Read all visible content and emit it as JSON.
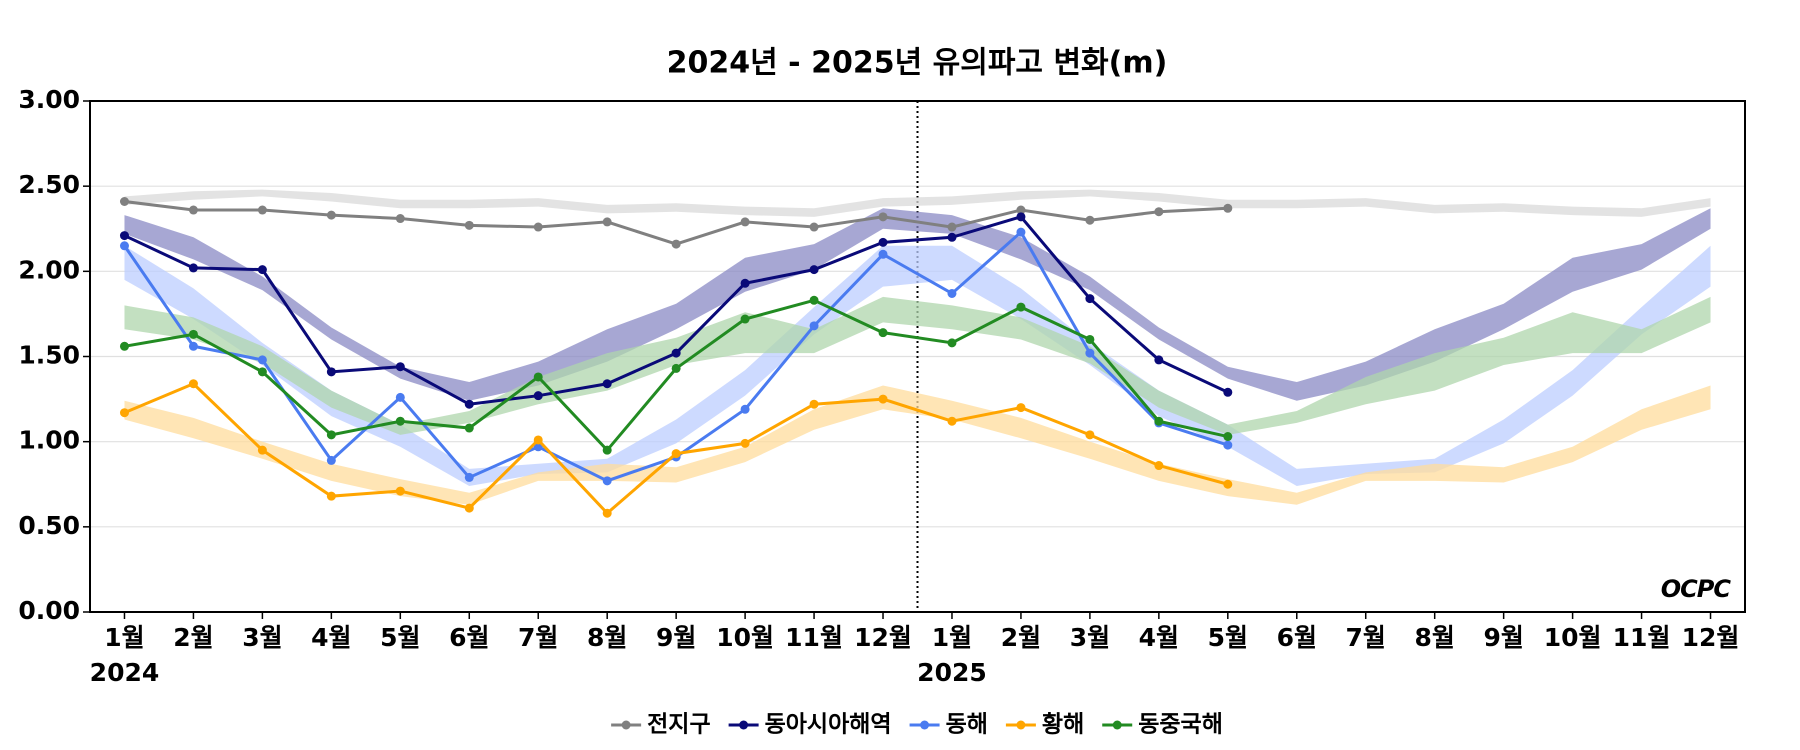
{
  "chart_data": {
    "type": "line",
    "title": "2024년 - 2025년 유의파고 변화(m)",
    "categories": [
      "1월",
      "2월",
      "3월",
      "4월",
      "5월",
      "6월",
      "7월",
      "8월",
      "9월",
      "10월",
      "11월",
      "12월",
      "1월",
      "2월",
      "3월",
      "4월",
      "5월",
      "6월",
      "7월",
      "8월",
      "9월",
      "10월",
      "11월",
      "12월"
    ],
    "year_labels": [
      "2024",
      "2025"
    ],
    "ylim": [
      0,
      3
    ],
    "yticks": [
      {
        "value": 0,
        "label": "0.00"
      },
      {
        "value": 0.5,
        "label": "0.50"
      },
      {
        "value": 1,
        "label": "1.00"
      },
      {
        "value": 1.5,
        "label": "1.50"
      },
      {
        "value": 2,
        "label": "2.00"
      },
      {
        "value": 2.5,
        "label": "2.50"
      },
      {
        "value": 3,
        "label": "3.00"
      }
    ],
    "grid": true,
    "legend": "bottom",
    "logo": "OCPC",
    "bands": [
      {
        "color": "#dadada",
        "low": [
          2.39,
          2.42,
          2.44,
          2.41,
          2.37,
          2.37,
          2.38,
          2.34,
          2.35,
          2.33,
          2.32,
          2.38,
          2.39,
          2.42,
          2.44,
          2.41,
          2.37,
          2.37,
          2.38,
          2.34,
          2.35,
          2.33,
          2.32,
          2.38
        ],
        "high": [
          2.44,
          2.47,
          2.48,
          2.46,
          2.42,
          2.42,
          2.43,
          2.39,
          2.4,
          2.38,
          2.37,
          2.43,
          2.44,
          2.47,
          2.48,
          2.46,
          2.42,
          2.42,
          2.43,
          2.39,
          2.4,
          2.38,
          2.37,
          2.43
        ]
      },
      {
        "color": "#8a8ac4",
        "low": [
          2.22,
          2.07,
          1.89,
          1.6,
          1.37,
          1.24,
          1.33,
          1.47,
          1.66,
          1.88,
          2.01,
          2.25,
          2.22,
          2.07,
          1.89,
          1.6,
          1.37,
          1.24,
          1.33,
          1.47,
          1.66,
          1.88,
          2.01,
          2.25
        ],
        "high": [
          2.33,
          2.2,
          1.97,
          1.67,
          1.44,
          1.35,
          1.47,
          1.66,
          1.81,
          2.08,
          2.16,
          2.37,
          2.33,
          2.2,
          1.97,
          1.67,
          1.44,
          1.35,
          1.47,
          1.66,
          1.81,
          2.08,
          2.16,
          2.37
        ]
      },
      {
        "color": "#bccdff",
        "low": [
          1.95,
          1.72,
          1.45,
          1.15,
          0.97,
          0.74,
          0.81,
          0.82,
          0.99,
          1.27,
          1.63,
          1.91,
          1.95,
          1.72,
          1.45,
          1.15,
          0.97,
          0.74,
          0.81,
          0.82,
          0.99,
          1.27,
          1.63,
          1.91
        ],
        "high": [
          2.15,
          1.9,
          1.58,
          1.3,
          1.1,
          0.84,
          0.87,
          0.9,
          1.13,
          1.42,
          1.79,
          2.15,
          2.15,
          1.9,
          1.58,
          1.3,
          1.1,
          0.84,
          0.87,
          0.9,
          1.13,
          1.42,
          1.79,
          2.15
        ]
      },
      {
        "color": "#ffdc9c",
        "low": [
          1.13,
          1.02,
          0.9,
          0.77,
          0.68,
          0.63,
          0.77,
          0.77,
          0.76,
          0.88,
          1.07,
          1.19,
          1.13,
          1.02,
          0.9,
          0.77,
          0.68,
          0.63,
          0.77,
          0.77,
          0.76,
          0.88,
          1.07,
          1.19
        ],
        "high": [
          1.24,
          1.14,
          1.0,
          0.87,
          0.78,
          0.7,
          0.82,
          0.87,
          0.85,
          0.97,
          1.19,
          1.33,
          1.24,
          1.14,
          1.0,
          0.87,
          0.78,
          0.7,
          0.82,
          0.87,
          0.85,
          0.97,
          1.19,
          1.33
        ]
      },
      {
        "color": "#afd6ac",
        "low": [
          1.66,
          1.6,
          1.46,
          1.2,
          1.04,
          1.11,
          1.22,
          1.3,
          1.45,
          1.52,
          1.52,
          1.7,
          1.66,
          1.6,
          1.46,
          1.2,
          1.04,
          1.11,
          1.22,
          1.3,
          1.45,
          1.52,
          1.52,
          1.7
        ],
        "high": [
          1.8,
          1.73,
          1.56,
          1.3,
          1.1,
          1.18,
          1.38,
          1.52,
          1.61,
          1.76,
          1.66,
          1.85,
          1.8,
          1.73,
          1.56,
          1.3,
          1.1,
          1.18,
          1.38,
          1.52,
          1.61,
          1.76,
          1.66,
          1.85
        ]
      }
    ],
    "series": [
      {
        "name": "전지구",
        "color": "#808080",
        "values": [
          2.41,
          2.36,
          2.36,
          2.33,
          2.31,
          2.27,
          2.26,
          2.29,
          2.16,
          2.29,
          2.26,
          2.32,
          2.26,
          2.36,
          2.3,
          2.35,
          2.37,
          null,
          null,
          null,
          null,
          null,
          null,
          null
        ]
      },
      {
        "name": "동아시아해역",
        "color": "#0a0a78",
        "values": [
          2.21,
          2.02,
          2.01,
          1.41,
          1.44,
          1.22,
          1.27,
          1.34,
          1.52,
          1.93,
          2.01,
          2.17,
          2.2,
          2.32,
          1.84,
          1.48,
          1.29,
          null,
          null,
          null,
          null,
          null,
          null,
          null
        ]
      },
      {
        "name": "동해",
        "color": "#4a7bf0",
        "values": [
          2.15,
          1.56,
          1.48,
          0.89,
          1.26,
          0.79,
          0.97,
          0.77,
          0.91,
          1.19,
          1.68,
          2.1,
          1.87,
          2.23,
          1.52,
          1.11,
          0.98,
          null,
          null,
          null,
          null,
          null,
          null,
          null
        ]
      },
      {
        "name": "황해",
        "color": "#ffa500",
        "values": [
          1.17,
          1.34,
          0.95,
          0.68,
          0.71,
          0.61,
          1.01,
          0.58,
          0.93,
          0.99,
          1.22,
          1.25,
          1.12,
          1.2,
          1.04,
          0.86,
          0.75,
          null,
          null,
          null,
          null,
          null,
          null,
          null
        ]
      },
      {
        "name": "동중국해",
        "color": "#228b22",
        "values": [
          1.56,
          1.63,
          1.41,
          1.04,
          1.12,
          1.08,
          1.38,
          0.95,
          1.43,
          1.72,
          1.83,
          1.64,
          1.58,
          1.79,
          1.6,
          1.12,
          1.03,
          null,
          null,
          null,
          null,
          null,
          null,
          null
        ]
      }
    ]
  }
}
